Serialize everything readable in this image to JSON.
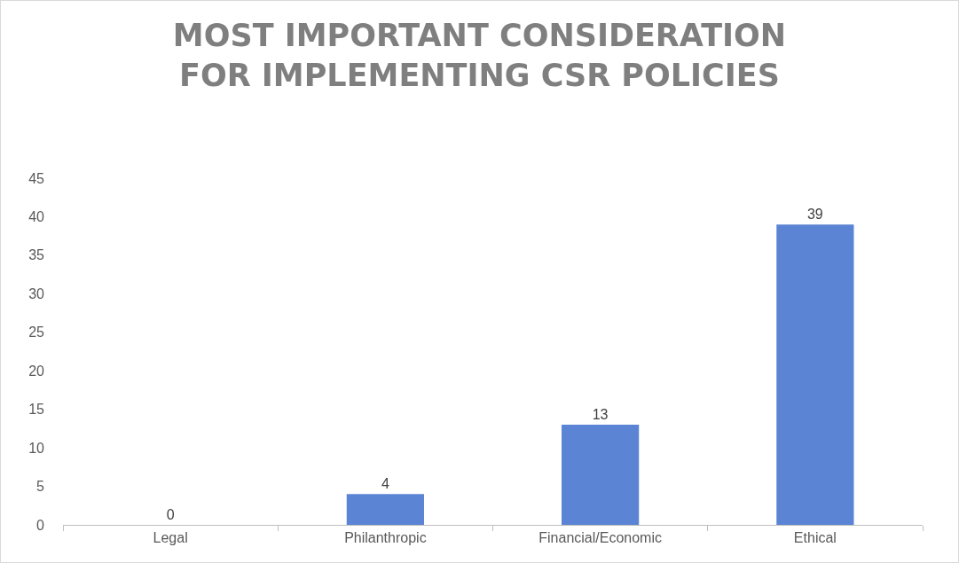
{
  "chart_data": {
    "type": "bar",
    "title": "MOST IMPORTANT CONSIDERATION FOR IMPLEMENTING CSR POLICIES",
    "categories": [
      "Legal",
      "Philanthropic",
      "Financial/Economic",
      "Ethical"
    ],
    "values": [
      0,
      4,
      13,
      39
    ],
    "color": "#5b84d4",
    "ylim": [
      0,
      45
    ],
    "yticks": [
      0,
      5,
      10,
      15,
      20,
      25,
      30,
      35,
      40,
      45
    ],
    "grid": false,
    "data_labels": true
  }
}
